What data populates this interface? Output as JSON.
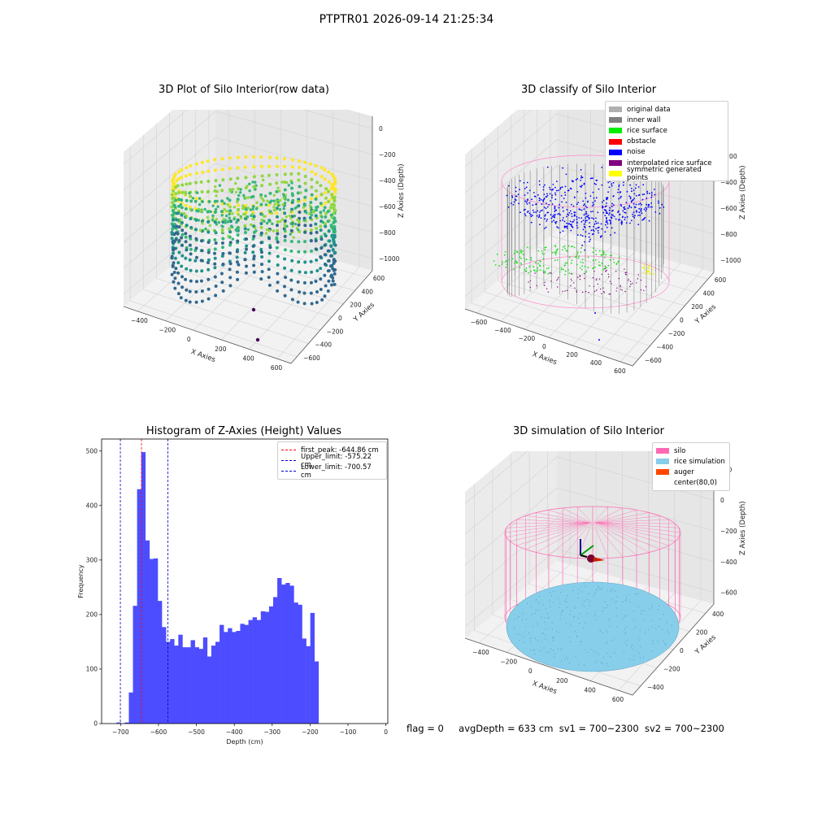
{
  "figure": {
    "title": "PTPTR01 2026-09-14 21:25:34",
    "status": {
      "flag": "flag = 0",
      "avg_depth": "avgDepth = 633 cm",
      "sv1": "sv1 = 700~2300",
      "sv2": "sv2 = 700~2300"
    }
  },
  "chart_data": [
    {
      "type": "scatter",
      "title": "3D Plot of Silo Interior(row data)",
      "xlabel": "X Axies",
      "ylabel": "Y Axies",
      "zlabel": "Z Axies (Depth)",
      "x_ticks": [
        "−400",
        "−200",
        "0",
        "200",
        "400",
        "600"
      ],
      "y_ticks": [
        "−600",
        "−400",
        "−200",
        "0",
        "200",
        "400",
        "600"
      ],
      "z_ticks": [
        "0",
        "−200",
        "−400",
        "−600",
        "−800",
        "−1000"
      ],
      "colormap": [
        "#440154",
        "#31688e",
        "#21918c",
        "#35b779",
        "#90d743",
        "#fde725"
      ],
      "grid": true
    },
    {
      "type": "scatter",
      "title": "3D classify of Silo Interior",
      "xlabel": "X Axies",
      "ylabel": "Y Axies",
      "zlabel": "Z Axies (Depth)",
      "x_ticks": [
        "−600",
        "−400",
        "−200",
        "0",
        "200",
        "400",
        "600"
      ],
      "y_ticks": [
        "−600",
        "−400",
        "−200",
        "0",
        "200",
        "400",
        "600"
      ],
      "z_ticks": [
        "0",
        "−200",
        "−400",
        "−600",
        "−800",
        "−1000"
      ],
      "legend": [
        {
          "label": "original data",
          "color": "#b0b0b0"
        },
        {
          "label": "inner wall",
          "color": "#808080"
        },
        {
          "label": "rice surface",
          "color": "#00ee00"
        },
        {
          "label": "obstacle",
          "color": "#ff0000"
        },
        {
          "label": "noise",
          "color": "#0000ff"
        },
        {
          "label": "interpolated rice surface",
          "color": "#800080"
        },
        {
          "label": "symmetric generated points",
          "color": "#ffff00"
        }
      ],
      "legend_position": "top-right",
      "grid": true
    },
    {
      "type": "bar",
      "title": "Histogram of Z-Axies (Height) Values",
      "xlabel": "Depth (cm)",
      "ylabel": "Frequency",
      "xlim": [
        -750,
        5
      ],
      "ylim": [
        0,
        522
      ],
      "x_ticks": [
        -700,
        -600,
        -500,
        -400,
        -300,
        -200,
        -100,
        0
      ],
      "x_tick_labels": [
        "−700",
        "−600",
        "−500",
        "−400",
        "−300",
        "−200",
        "−100",
        "0"
      ],
      "y_ticks": [
        0,
        100,
        200,
        300,
        400,
        500
      ],
      "y_tick_labels": [
        "0",
        "100",
        "200",
        "300",
        "400",
        "500"
      ],
      "bin_start": -710.87,
      "bin_width": 10.88,
      "values": [
        2,
        0,
        2,
        57,
        216,
        430,
        498,
        336,
        302,
        303,
        225,
        177,
        150,
        155,
        143,
        163,
        140,
        140,
        153,
        140,
        137,
        158,
        123,
        143,
        150,
        181,
        168,
        175,
        168,
        170,
        183,
        181,
        190,
        195,
        190,
        206,
        205,
        215,
        232,
        267,
        255,
        258,
        253,
        222,
        218,
        156,
        142,
        203,
        114
      ],
      "bar_color": "#4d4dff",
      "reference_lines": [
        {
          "label": "first_peak: -644.86 cm",
          "value": -644.86,
          "color": "#ff0000"
        },
        {
          "label": "Upper_limit: -575.22 cm",
          "value": -575.22,
          "color": "#0000cc"
        },
        {
          "label": "Lower_limit: -700.57 cm",
          "value": -700.57,
          "color": "#0000cc"
        }
      ],
      "legend_position": "top-right"
    },
    {
      "type": "scatter",
      "title": "3D simulation of Silo Interior",
      "xlabel": "X Axies",
      "ylabel": "Y Axies",
      "zlabel": "Z Axies (Depth)",
      "x_ticks": [
        "−400",
        "−200",
        "0",
        "200",
        "400",
        "600"
      ],
      "y_ticks": [
        "−400",
        "−200",
        "0",
        "200",
        "400"
      ],
      "z_ticks": [
        "200",
        "0",
        "−200",
        "−400",
        "−600"
      ],
      "legend": [
        {
          "label": "silo",
          "color": "#ff69b4"
        },
        {
          "label": "rice simulation",
          "color": "#87ceeb"
        },
        {
          "label": "auger",
          "color": "#ff4500"
        },
        {
          "label": "center(80,0)",
          "color": ""
        }
      ],
      "legend_position": "top-right",
      "grid": true
    }
  ]
}
